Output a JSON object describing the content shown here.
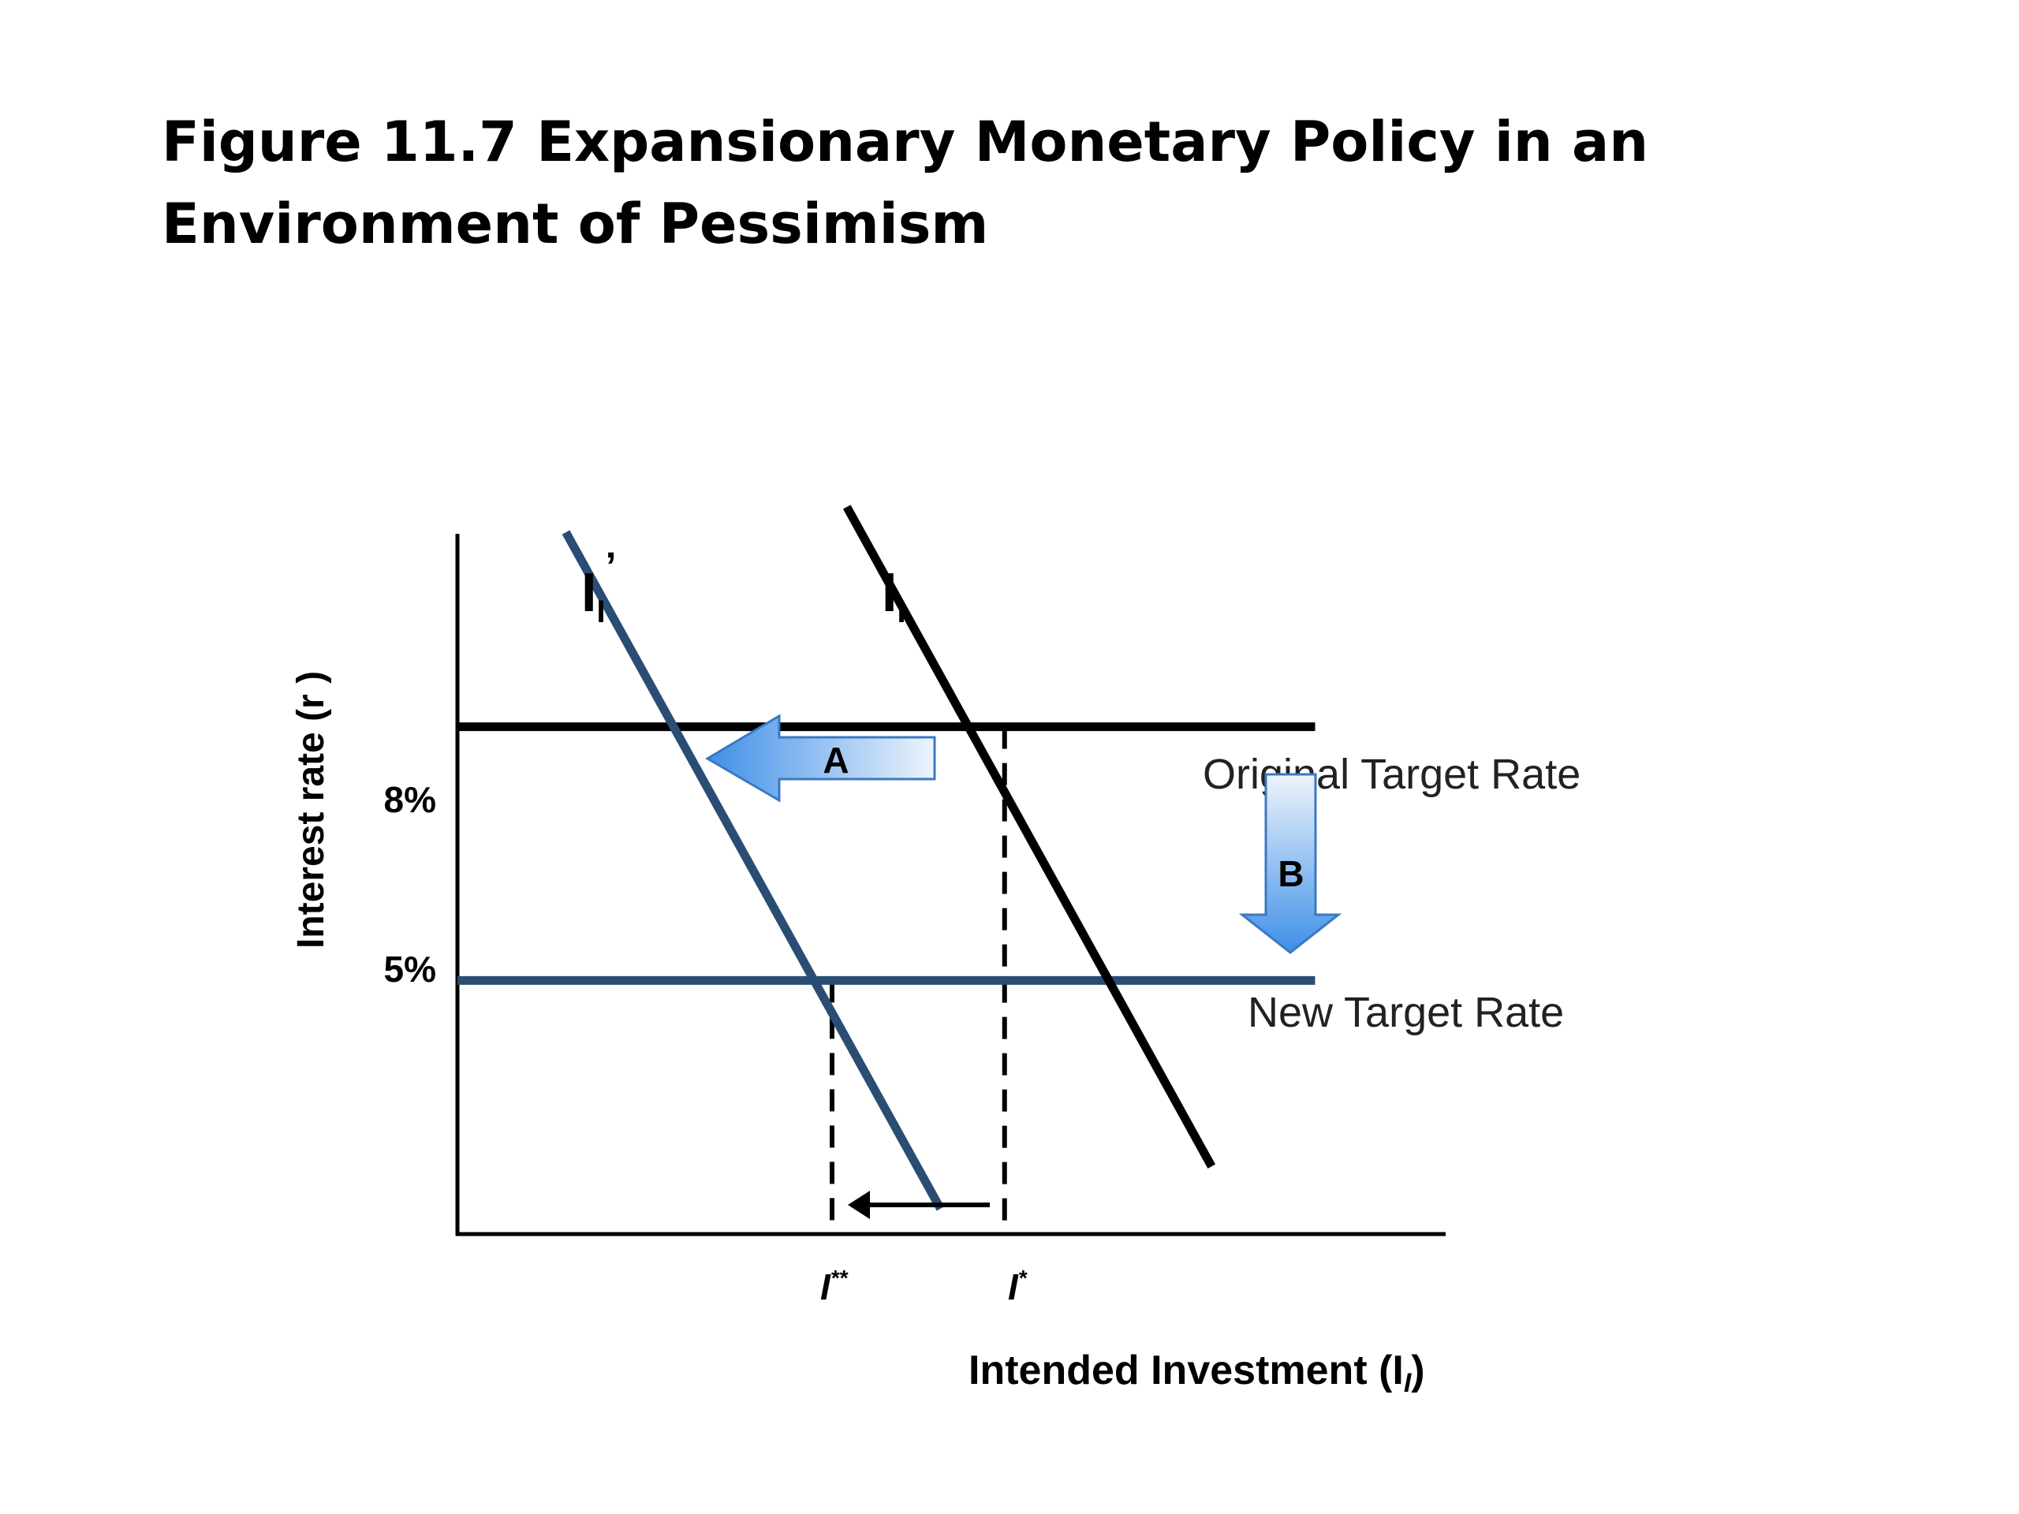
{
  "slide": {
    "title": "Figure 11.7 Expansionary Monetary Policy in an Environment of Pessimism"
  },
  "colors": {
    "original_curve": "#000000",
    "shifted_curve": "#2a4d74",
    "arrow_fill_light": "#e9f1fb",
    "arrow_fill_dark": "#3f8fe8"
  },
  "chart_data": {
    "type": "line",
    "title": "",
    "xlabel": "Intended Investment (I",
    "xlabel_subscript": "I",
    "xlabel_close": ")",
    "ylabel": "Interest rate (r )",
    "ylim": [
      2,
      11
    ],
    "xlim": [
      0,
      10
    ],
    "y_ticks": [
      {
        "value": 8,
        "label": "8%"
      },
      {
        "value": 5,
        "label": "5%"
      }
    ],
    "x_ticks": [
      {
        "value": 3.8,
        "label": "I",
        "sup": "**"
      },
      {
        "value": 5.55,
        "label": "I",
        "sup": "*"
      }
    ],
    "series": [
      {
        "name": "I",
        "sub": "I",
        "prime": "",
        "color": "#000000",
        "points": [
          [
            3.95,
            10.6
          ],
          [
            7.65,
            2.8
          ]
        ]
      },
      {
        "name": "I",
        "sub": "I",
        "prime": "’",
        "color": "#2a4d74",
        "points": [
          [
            1.1,
            10.3
          ],
          [
            4.9,
            2.3
          ]
        ]
      }
    ],
    "hlines": [
      {
        "y": 8,
        "x_end": 8.7,
        "label": "Original Target Rate",
        "color": "#000000"
      },
      {
        "y": 5,
        "x_end": 8.7,
        "label": "New Target Rate",
        "color": "#2a4d74"
      }
    ],
    "vlines": [
      {
        "x": 3.8,
        "y_top": 5
      },
      {
        "x": 5.55,
        "y_top": 8
      }
    ],
    "annotations": [
      {
        "label": "A",
        "meaning": "investment demand shifts left"
      },
      {
        "label": "B",
        "meaning": "target rate lowered"
      }
    ],
    "grid": false
  }
}
